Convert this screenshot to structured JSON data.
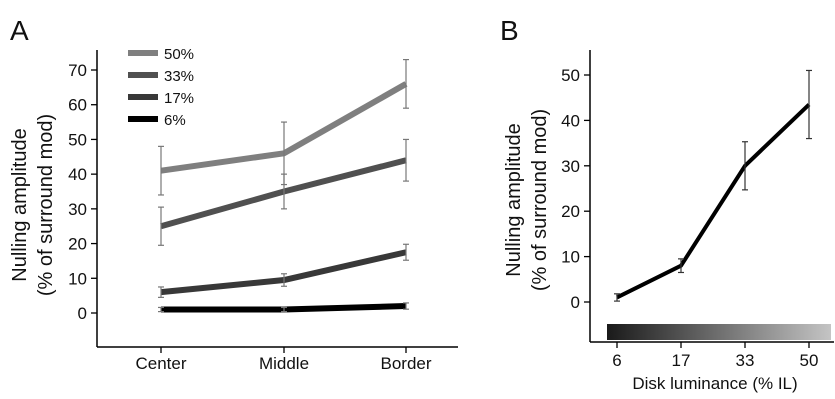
{
  "chart_data": [
    {
      "panel_label": "A",
      "type": "line",
      "categories": [
        "Center",
        "Middle",
        "Border"
      ],
      "ylabel_line1": "Nulling amplitude",
      "ylabel_line2": "(% of surround mod)",
      "ylim": [
        -10,
        75
      ],
      "yticks": [
        0,
        10,
        20,
        30,
        40,
        50,
        60,
        70
      ],
      "legend_position": "top-left",
      "grid": false,
      "series": [
        {
          "name": "50%",
          "values": [
            41,
            46,
            66
          ],
          "errors": [
            7,
            9,
            7
          ],
          "color": "#7f7f7f"
        },
        {
          "name": "33%",
          "values": [
            25,
            35,
            44
          ],
          "errors": [
            5.5,
            5,
            6
          ],
          "color": "#505050"
        },
        {
          "name": "17%",
          "values": [
            6,
            9.5,
            17.5
          ],
          "errors": [
            1.5,
            1.8,
            2.3
          ],
          "color": "#383838"
        },
        {
          "name": "6%",
          "values": [
            1,
            1,
            2
          ],
          "errors": [
            0.6,
            0.6,
            0.9
          ],
          "color": "#000000"
        }
      ]
    },
    {
      "panel_label": "B",
      "type": "line",
      "categories": [
        "6",
        "17",
        "33",
        "50"
      ],
      "xlabel": "Disk luminance (% IL)",
      "ylabel_line1": "Nulling amplitude",
      "ylabel_line2": "(% of surround mod)",
      "ylim": [
        -9,
        56
      ],
      "yticks": [
        0,
        10,
        20,
        30,
        40,
        50
      ],
      "grid": false,
      "gradient_bar": {
        "from_color": "#1a1a1a",
        "to_color": "#c4c4c4"
      },
      "series": [
        {
          "values": [
            1,
            8,
            30,
            43.5
          ],
          "errors": [
            0.8,
            1.5,
            5.3,
            7.5
          ],
          "color": "#000000"
        }
      ]
    }
  ]
}
